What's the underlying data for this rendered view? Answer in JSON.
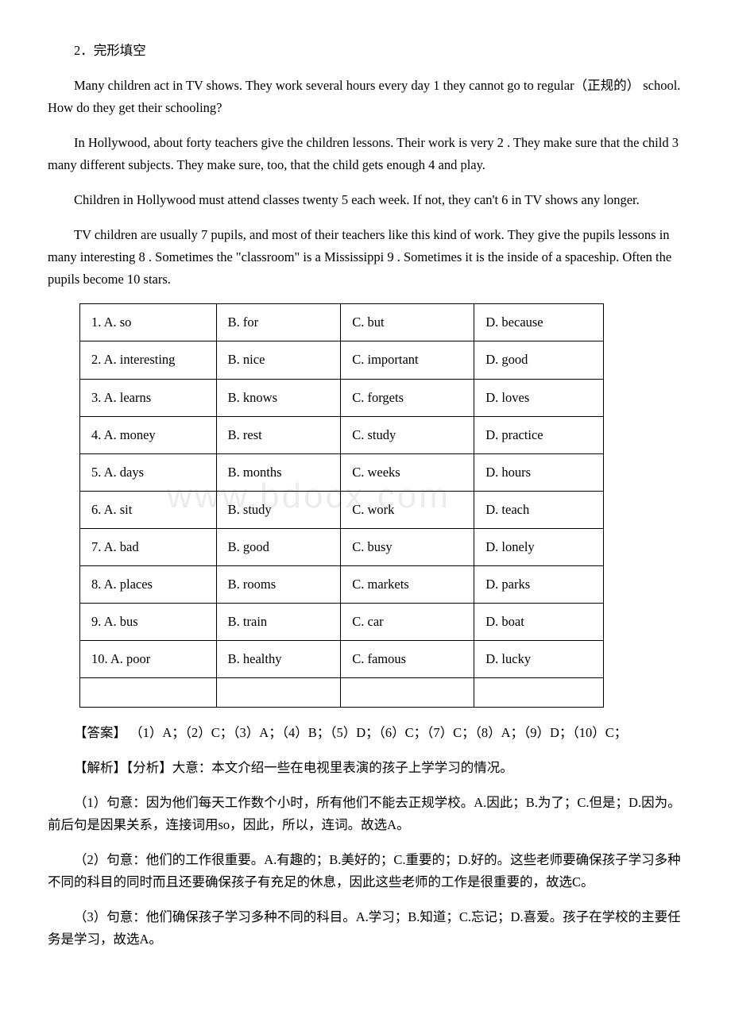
{
  "watermark": "www.bdocx.com",
  "header": "2．完形填空",
  "passage": {
    "p1": "Many children act in TV shows. They work several hours every day  1  they cannot go to regular（正规的） school. How do they get their schooling?",
    "p2": "In Hollywood, about forty teachers give the children lessons. Their work is very  2 . They make sure that the child  3  many different subjects. They make sure, too, that the child gets enough  4  and play.",
    "p3": "Children in Hollywood must attend classes twenty  5  each week. If not, they can't  6  in TV shows any longer.",
    "p4": "TV children are usually  7  pupils, and most of their teachers like this kind of work. They give the pupils lessons in many interesting  8 . Sometimes the \"classroom\" is a Mississippi  9 . Sometimes it is the inside of a spaceship. Often the pupils become  10  stars."
  },
  "options": [
    {
      "a": "1. A. so",
      "b": "B. for",
      "c": "C. but",
      "d": "D. because"
    },
    {
      "a": "2. A. interesting",
      "b": "B. nice",
      "c": "C. important",
      "d": "D. good"
    },
    {
      "a": "3. A. learns",
      "b": "B. knows",
      "c": "C. forgets",
      "d": "D. loves"
    },
    {
      "a": "4. A. money",
      "b": "B. rest",
      "c": "C. study",
      "d": "D. practice"
    },
    {
      "a": "5. A. days",
      "b": "B. months",
      "c": "C. weeks",
      "d": "D. hours"
    },
    {
      "a": "6. A. sit",
      "b": "B. study",
      "c": "C. work",
      "d": "D. teach"
    },
    {
      "a": "7. A. bad",
      "b": "B. good",
      "c": "C. busy",
      "d": "D. lonely"
    },
    {
      "a": "8. A. places",
      "b": "B. rooms",
      "c": "C. markets",
      "d": "D. parks"
    },
    {
      "a": "9. A. bus",
      "b": "B. train",
      "c": "C. car",
      "d": "D. boat"
    },
    {
      "a": "10. A. poor",
      "b": "B. healthy",
      "c": "C. famous",
      "d": "D. lucky"
    }
  ],
  "answer": "【答案】 （1）A；（2）C；（3）A；（4）B；（5）D；（6）C；（7）C；（8）A；（9）D；（10）C；",
  "analysis": "【解析】【分析】大意：本文介绍一些在电视里表演的孩子上学学习的情况。",
  "explanations": [
    "（1）句意：因为他们每天工作数个小时，所有他们不能去正规学校。A.因此；B.为了；C.但是；D.因为。前后句是因果关系，连接词用so，因此，所以，连词。故选A。",
    "（2）句意：他们的工作很重要。A.有趣的；B.美好的；C.重要的；D.好的。这些老师要确保孩子学习多种不同的科目的同时而且还要确保孩子有充足的休息，因此这些老师的工作是很重要的，故选C。",
    "（3）句意：他们确保孩子学习多种不同的科目。A.学习；B.知道；C.忘记；D.喜爱。孩子在学校的主要任务是学习，故选A。"
  ]
}
